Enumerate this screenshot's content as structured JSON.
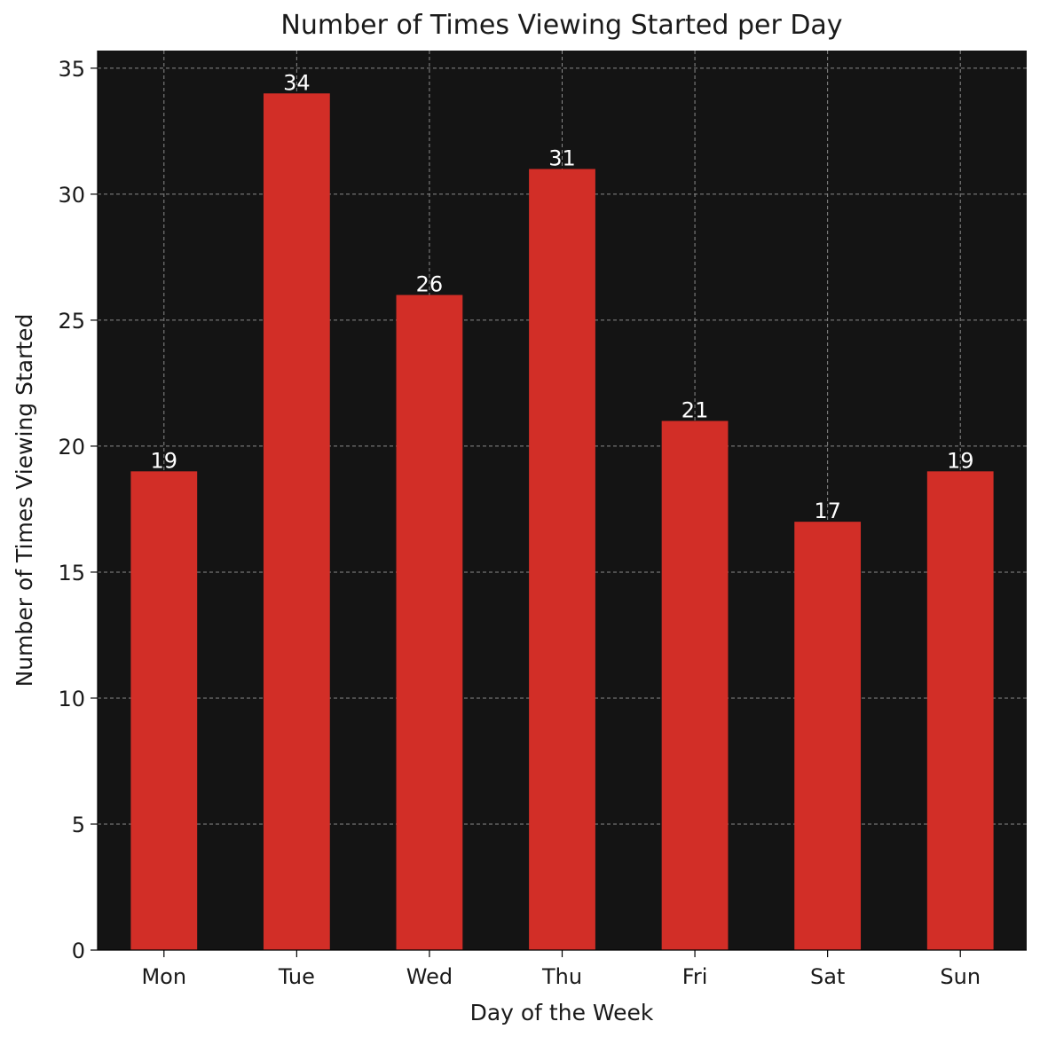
{
  "chart_data": {
    "type": "bar",
    "title": "Number of Times Viewing Started per Day",
    "xlabel": "Day of the Week",
    "ylabel": "Number of Times Viewing Started",
    "categories": [
      "Mon",
      "Tue",
      "Wed",
      "Thu",
      "Fri",
      "Sat",
      "Sun"
    ],
    "values": [
      19,
      34,
      26,
      31,
      21,
      17,
      19
    ],
    "data_labels": [
      "19",
      "34",
      "26",
      "31",
      "21",
      "17",
      "19"
    ],
    "ylim": [
      0,
      35.7
    ],
    "yticks": [
      0,
      5,
      10,
      15,
      20,
      25,
      30,
      35
    ],
    "grid": true,
    "legend": "none"
  },
  "colors": {
    "plot_background": "#141414",
    "bar": "#d22e27",
    "grid": "#8a8a8a",
    "data_label": "#ffffff",
    "text": "#1a1a1a"
  }
}
